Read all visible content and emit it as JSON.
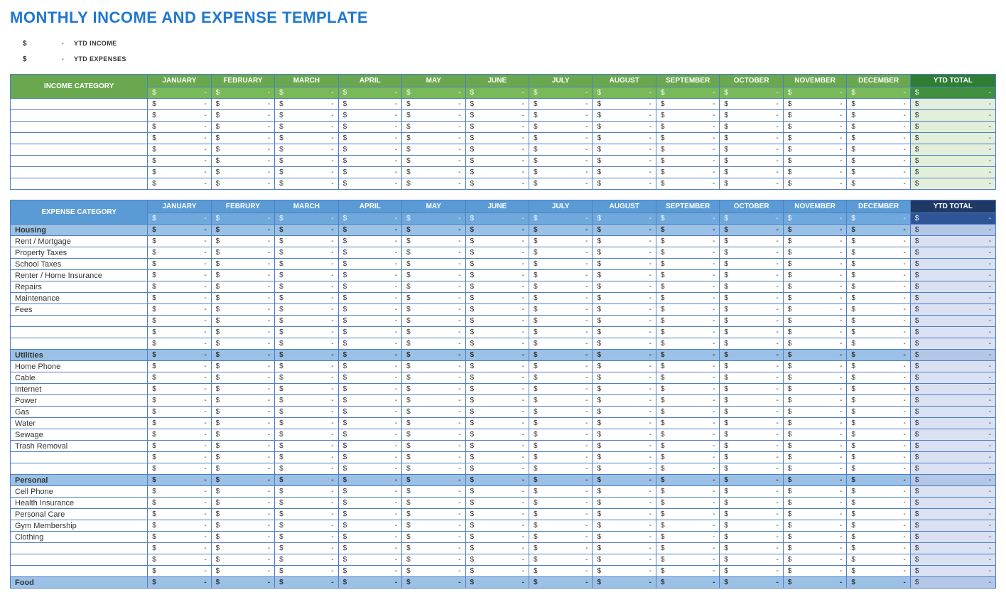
{
  "title": "MONTHLY INCOME AND EXPENSE TEMPLATE",
  "summary": {
    "income": {
      "symbol": "$",
      "dash": "-",
      "label": "YTD INCOME"
    },
    "expenses": {
      "symbol": "$",
      "dash": "-",
      "label": "YTD EXPENSES"
    }
  },
  "cell": {
    "symbol": "$",
    "empty": "-"
  },
  "months_income": [
    "JANUARY",
    "FEBRUARY",
    "MARCH",
    "APRIL",
    "MAY",
    "JUNE",
    "JULY",
    "AUGUST",
    "SEPTEMBER",
    "OCTOBER",
    "NOVEMBER",
    "DECEMBER"
  ],
  "months_expense": [
    "JANUARY",
    "FEBRURY",
    "MARCH",
    "APRIL",
    "MAY",
    "JUNE",
    "JULY",
    "AUGUST",
    "SEPTEMBER",
    "OCTOBER",
    "NOVEMBER",
    "DECEMBER"
  ],
  "ytd_label": "YTD TOTAL",
  "income": {
    "category_label": "INCOME CATEGORY",
    "row_count": 8
  },
  "expense": {
    "category_label": "EXPENSE CATEGORY",
    "sections": [
      {
        "name": "Housing",
        "rows": [
          "Rent / Mortgage",
          "Property Taxes",
          "School Taxes",
          "Renter / Home Insurance",
          "Repairs",
          "Maintenance",
          "Fees",
          "",
          "",
          ""
        ]
      },
      {
        "name": "Utilities",
        "rows": [
          "Home Phone",
          "Cable",
          "Internet",
          "Power",
          "Gas",
          "Water",
          "Sewage",
          "Trash Removal",
          "",
          ""
        ]
      },
      {
        "name": "Personal",
        "rows": [
          "Cell Phone",
          "Health Insurance",
          "Personal Care",
          "Gym Membership",
          "Clothing",
          "",
          "",
          ""
        ]
      },
      {
        "name": "Food",
        "rows": []
      }
    ]
  },
  "colors": {
    "title": "#1f77d0",
    "border": "#4f7ec2",
    "income_header": "#6aa84f",
    "income_sub": "#78b95a",
    "income_ytd_header": "#2e7d32",
    "income_ytd_cell": "#e2efda",
    "expense_header": "#5b9bd5",
    "expense_sub": "#6fa8dc",
    "expense_ytd_header": "#1f3864",
    "expense_ytd_cell": "#d9e1f2",
    "expense_group": "#9bc2e6",
    "expense_group_ytd": "#b4c7e7"
  }
}
